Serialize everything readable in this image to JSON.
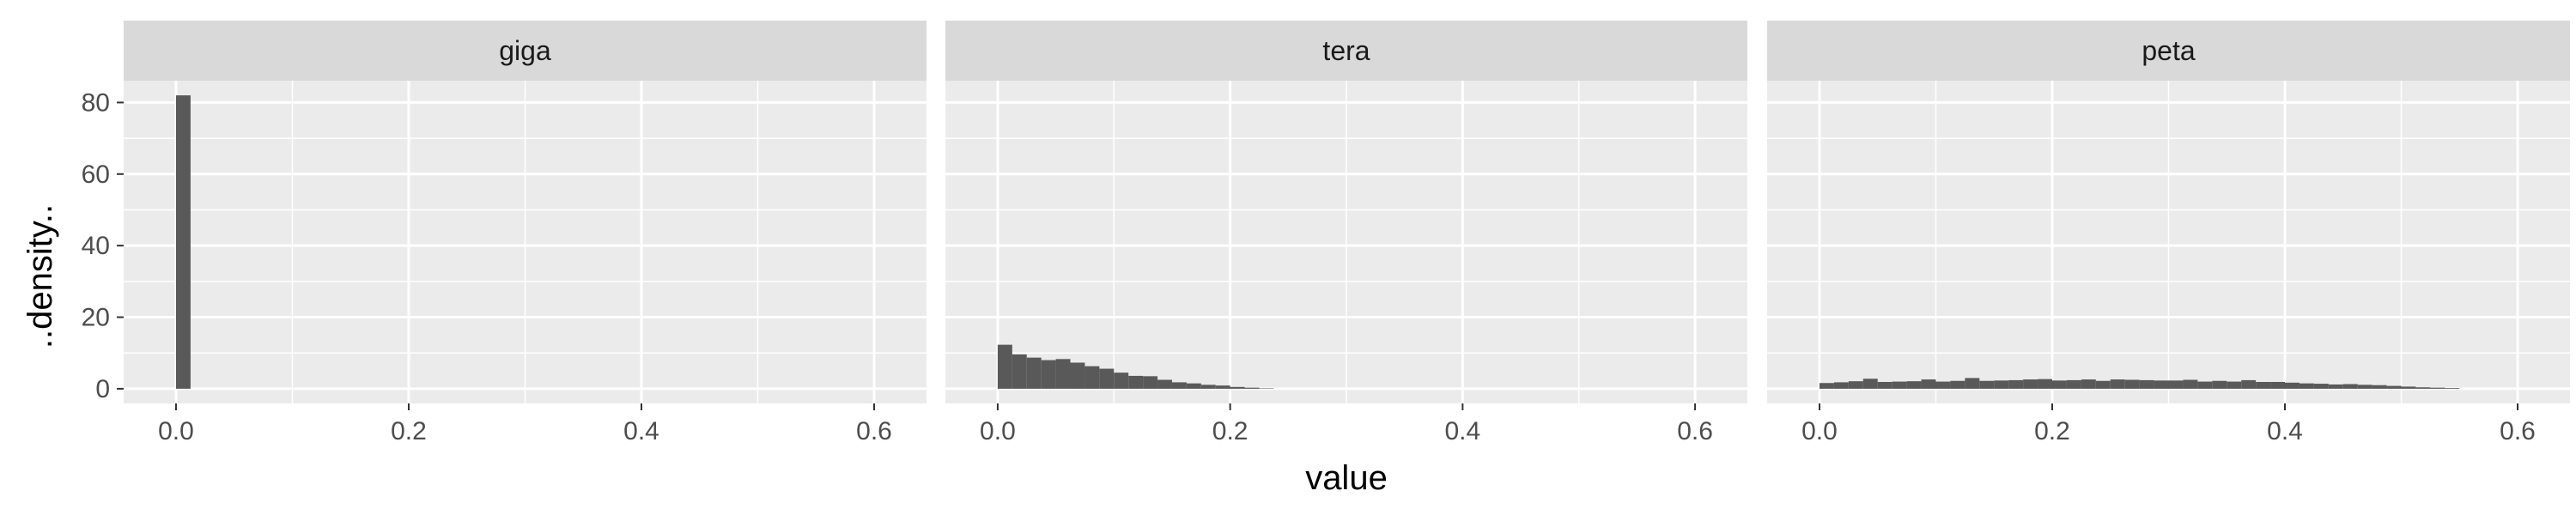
{
  "chart_data": {
    "type": "bar",
    "subtype": "faceted-histogram",
    "xlabel": "value",
    "ylabel": "..density..",
    "xlim": [
      -0.045,
      0.645
    ],
    "ylim": [
      -4.1,
      86.1
    ],
    "x_ticks": [
      0.0,
      0.2,
      0.4,
      0.6
    ],
    "x_tick_labels": [
      "0.0",
      "0.2",
      "0.4",
      "0.6"
    ],
    "y_ticks": [
      0,
      20,
      40,
      60,
      80
    ],
    "y_tick_labels": [
      "0",
      "20",
      "40",
      "60",
      "80"
    ],
    "grid": true,
    "bin_width": 0.0125,
    "colors": {
      "bar": "#595959",
      "panel": "#ebebeb",
      "strip": "#d9d9d9",
      "grid": "#ffffff"
    },
    "facets": [
      {
        "label": "giga",
        "bin_start": 0.0,
        "values": [
          82
        ]
      },
      {
        "label": "tera",
        "bin_start": 0.0,
        "values": [
          12.3,
          9.6,
          8.7,
          8.0,
          8.3,
          7.3,
          6.3,
          5.6,
          4.5,
          3.6,
          3.5,
          2.5,
          1.8,
          1.5,
          1.1,
          0.9,
          0.5,
          0.3,
          0.1
        ]
      },
      {
        "label": "peta",
        "bin_start": 0.0,
        "values": [
          1.6,
          1.8,
          2.1,
          2.8,
          1.9,
          2.0,
          2.1,
          2.6,
          2.0,
          2.2,
          3.0,
          2.2,
          2.3,
          2.4,
          2.6,
          2.7,
          2.3,
          2.4,
          2.6,
          2.2,
          2.6,
          2.5,
          2.4,
          2.3,
          2.3,
          2.5,
          2.0,
          2.2,
          2.0,
          2.4,
          1.9,
          1.9,
          1.7,
          1.5,
          1.4,
          1.2,
          1.3,
          1.1,
          1.0,
          0.8,
          0.6,
          0.4,
          0.3,
          0.2
        ]
      }
    ]
  }
}
